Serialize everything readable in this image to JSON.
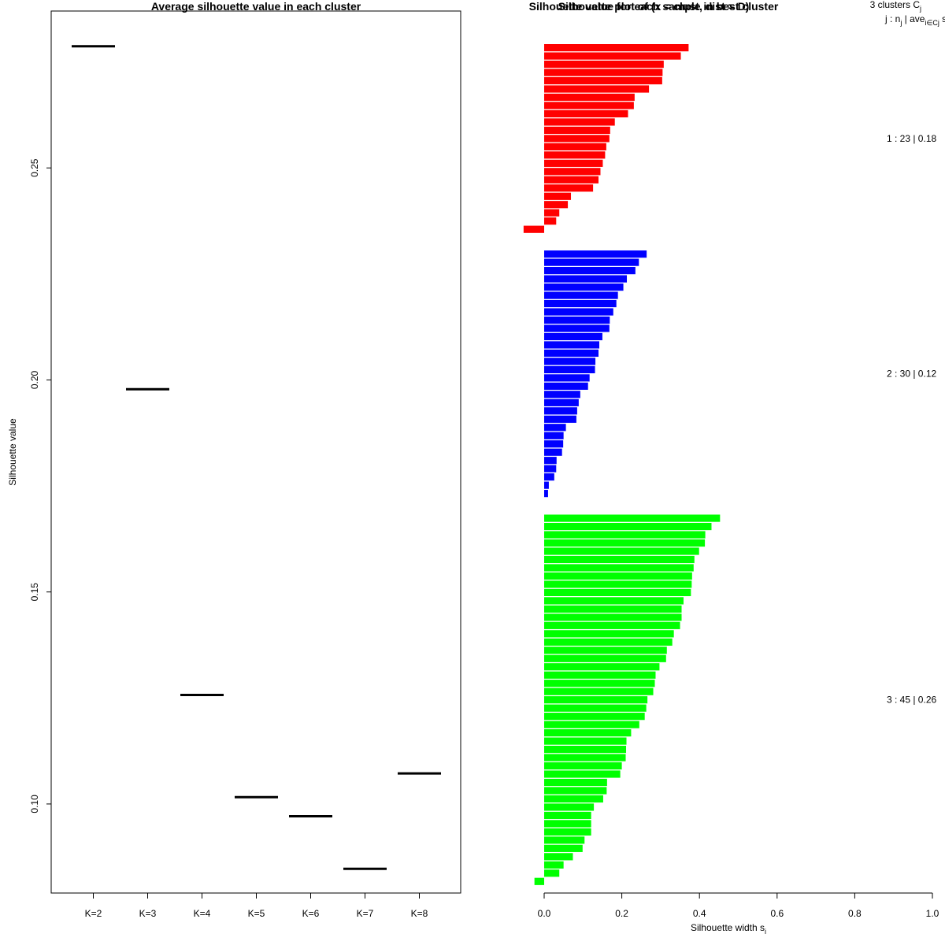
{
  "chart_data": [
    {
      "type": "line",
      "title": "Average silhouette value in each cluster",
      "xlabel": "",
      "ylabel": "Silhouette value",
      "categories": [
        "K=2",
        "K=3",
        "K=4",
        "K=5",
        "K=6",
        "K=7",
        "K=8"
      ],
      "values": [
        0.2787,
        0.1978,
        0.1257,
        0.1016,
        0.0971,
        0.0847,
        0.1072
      ],
      "ylim": [
        0.079,
        0.287
      ],
      "yticks": [
        0.1,
        0.15,
        0.2,
        0.25
      ],
      "ytick_labels": [
        "0.10",
        "0.15",
        "0.20",
        "0.25"
      ]
    },
    {
      "type": "bar",
      "orientation": "horizontal",
      "title": "Silhouette value for each sample in best cluster",
      "title_overlap": "Silhouette plot of (x = clust, dist = D)",
      "xlabel": "Silhouette width s",
      "xlabel_subscript": "i",
      "xlim": [
        0,
        1
      ],
      "xticks": [
        0,
        0.2,
        0.4,
        0.6,
        0.8,
        1.0
      ],
      "xtick_labels": [
        "0.0",
        "0.2",
        "0.4",
        "0.6",
        "0.8",
        "1.0"
      ],
      "header": {
        "line1": "3  clusters  C",
        "line1_sub": "j",
        "line2": "j :  n",
        "line2_sub_n": "j",
        "line2_ave": " | ave",
        "line2_sub_ave": "i∈Cj",
        "line2_end": "  s",
        "line2_end_sub": "i"
      },
      "series": [
        {
          "name": "1 :  23  |  0.18",
          "color": "#ff0000",
          "values": [
            0.372,
            0.352,
            0.308,
            0.305,
            0.304,
            0.27,
            0.233,
            0.231,
            0.216,
            0.182,
            0.17,
            0.168,
            0.16,
            0.157,
            0.151,
            0.145,
            0.14,
            0.126,
            0.069,
            0.061,
            0.039,
            0.031,
            -0.053
          ]
        },
        {
          "name": "2 :  30  |  0.12",
          "color": "#0000ff",
          "values": [
            0.264,
            0.244,
            0.235,
            0.213,
            0.204,
            0.19,
            0.186,
            0.178,
            0.169,
            0.168,
            0.15,
            0.142,
            0.14,
            0.132,
            0.131,
            0.117,
            0.113,
            0.093,
            0.089,
            0.085,
            0.083,
            0.056,
            0.05,
            0.049,
            0.046,
            0.032,
            0.031,
            0.026,
            0.012,
            0.01
          ]
        },
        {
          "name": "3 :  45  |  0.26",
          "color": "#00ff00",
          "values": [
            0.453,
            0.431,
            0.415,
            0.414,
            0.399,
            0.387,
            0.385,
            0.381,
            0.38,
            0.378,
            0.359,
            0.354,
            0.354,
            0.35,
            0.334,
            0.33,
            0.316,
            0.314,
            0.297,
            0.287,
            0.285,
            0.281,
            0.266,
            0.263,
            0.259,
            0.245,
            0.224,
            0.212,
            0.211,
            0.21,
            0.2,
            0.196,
            0.162,
            0.161,
            0.152,
            0.128,
            0.121,
            0.121,
            0.121,
            0.104,
            0.099,
            0.074,
            0.05,
            0.039,
            -0.025
          ]
        }
      ]
    }
  ]
}
